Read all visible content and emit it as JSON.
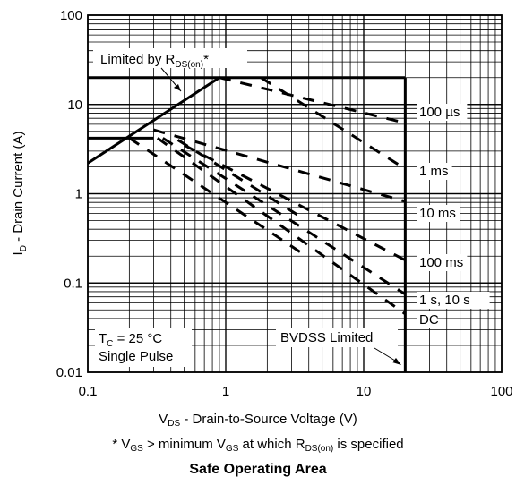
{
  "chart_data": {
    "type": "line",
    "title": "Safe Operating Area",
    "xlabel": {
      "main": "V",
      "sub": "DS",
      "rest": " - Drain-to-Source Voltage (V)"
    },
    "ylabel": {
      "main": "I",
      "sub": "D",
      "rest": " - Drain Current (A)"
    },
    "footnote": {
      "p1": "* V",
      "s1": "GS",
      "p2": " > minimum V",
      "s2": "GS",
      "p3": " at which R",
      "s3": "DS(on)",
      "p4": " is specified"
    },
    "x_scale": "log",
    "y_scale": "log",
    "xlim": [
      0.1,
      100
    ],
    "ylim": [
      0.01,
      100
    ],
    "x_ticks": [
      "0.1",
      "1",
      "10",
      "100"
    ],
    "y_ticks": [
      "0.01",
      "0.1",
      "1",
      "10",
      "100"
    ],
    "grid": true,
    "boundary": {
      "rds_on_line": {
        "style": "solid",
        "points": [
          [
            0.1,
            2.2
          ],
          [
            0.9,
            20
          ]
        ]
      },
      "current_limit": {
        "style": "solid",
        "points": [
          [
            0.1,
            20
          ],
          [
            20,
            20
          ]
        ]
      },
      "bvdss_limit": {
        "style": "solid",
        "points": [
          [
            20,
            0.01
          ],
          [
            20,
            20
          ]
        ]
      },
      "dc_current_step": {
        "style": "solid",
        "points": [
          [
            0.1,
            4.2
          ],
          [
            0.3,
            4.2
          ]
        ]
      }
    },
    "series": [
      {
        "label": "100 µs",
        "style": "dashed",
        "points": [
          [
            0.9,
            20
          ],
          [
            20,
            6.2
          ]
        ]
      },
      {
        "label": "1 ms",
        "style": "dashed",
        "points": [
          [
            1.8,
            20
          ],
          [
            20,
            1.9
          ]
        ]
      },
      {
        "label": "10 ms",
        "style": "dashed",
        "points": [
          [
            0.3,
            5.2
          ],
          [
            20,
            0.82
          ]
        ]
      },
      {
        "label": "100 ms",
        "style": "dashed",
        "points": [
          [
            0.5,
            3.5
          ],
          [
            20,
            0.18
          ]
        ]
      },
      {
        "label": "1 s, 10 s",
        "style": "dashed",
        "points": [
          [
            0.35,
            4.2
          ],
          [
            20,
            0.075
          ]
        ]
      },
      {
        "label": "DC",
        "style": "dashed",
        "points": [
          [
            0.32,
            4.2
          ],
          [
            20,
            0.045
          ]
        ]
      },
      {
        "label": "",
        "style": "dashed",
        "points": [
          [
            0.2,
            4.2
          ],
          [
            3.5,
            0.22
          ]
        ]
      },
      {
        "label": "",
        "style": "dashed",
        "points": [
          [
            0.45,
            4.0
          ],
          [
            3.5,
            0.55
          ]
        ]
      }
    ],
    "annotations": {
      "rds": {
        "pre": "Limited by R",
        "sub": "DS(on)",
        "post": "*"
      },
      "bvdss": "BVDSS Limited",
      "cond_tc": {
        "pre": "T",
        "sub": "C",
        "post": " = 25 °C"
      },
      "cond_pulse": "Single Pulse"
    }
  }
}
